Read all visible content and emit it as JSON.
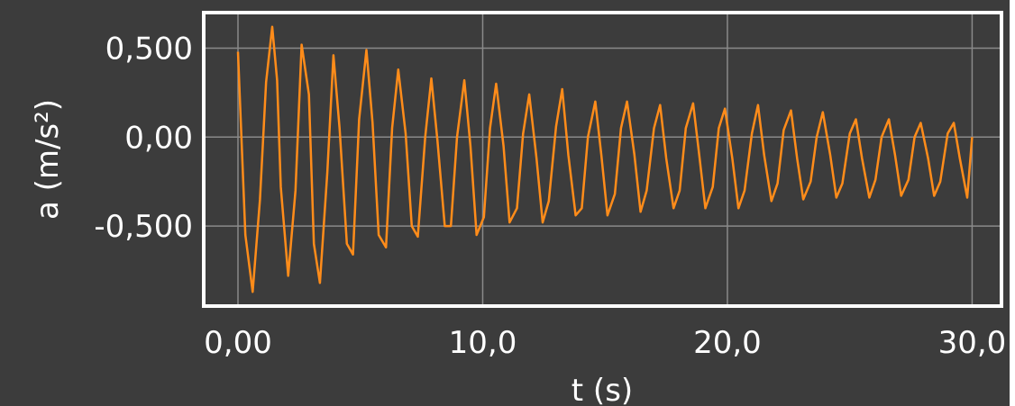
{
  "chart_data": {
    "type": "line",
    "title": "",
    "xlabel": "t (s)",
    "ylabel": "a (m/s²)",
    "xlim": [
      -1.4,
      31.2
    ],
    "ylim": [
      -0.95,
      0.7
    ],
    "x_ticks": [
      0,
      10,
      20,
      30
    ],
    "x_tick_labels": [
      "0,00",
      "10,0",
      "20,0",
      "30,0"
    ],
    "y_ticks": [
      0.5,
      0,
      -0.5
    ],
    "y_tick_labels": [
      "0,500",
      "0,00",
      "-0,500"
    ],
    "grid": true,
    "legend": "none",
    "series": [
      {
        "color": "#ff8c1a",
        "x": [
          0.0,
          0.3,
          0.6,
          0.9,
          1.15,
          1.4,
          1.6,
          1.75,
          2.05,
          2.35,
          2.6,
          2.9,
          3.1,
          3.35,
          3.65,
          3.9,
          4.15,
          4.45,
          4.7,
          4.95,
          5.25,
          5.5,
          5.75,
          6.05,
          6.3,
          6.55,
          6.85,
          7.1,
          7.35,
          7.65,
          7.9,
          8.15,
          8.45,
          8.7,
          8.95,
          9.25,
          9.5,
          9.75,
          10.05,
          10.3,
          10.55,
          10.85,
          11.1,
          11.4,
          11.65,
          11.9,
          12.2,
          12.45,
          12.7,
          13.0,
          13.25,
          13.5,
          13.8,
          14.05,
          14.3,
          14.6,
          14.85,
          15.1,
          15.4,
          15.65,
          15.9,
          16.2,
          16.45,
          16.7,
          17.0,
          17.25,
          17.5,
          17.8,
          18.05,
          18.3,
          18.6,
          18.85,
          19.1,
          19.4,
          19.65,
          19.9,
          20.2,
          20.45,
          20.7,
          21.0,
          21.25,
          21.5,
          21.8,
          22.05,
          22.3,
          22.6,
          22.85,
          23.1,
          23.4,
          23.65,
          23.9,
          24.2,
          24.45,
          24.7,
          25.0,
          25.25,
          25.5,
          25.8,
          26.05,
          26.3,
          26.6,
          26.85,
          27.1,
          27.4,
          27.65,
          27.9,
          28.2,
          28.45,
          28.7,
          29.0,
          29.25,
          29.5,
          29.8,
          30.0
        ],
        "y": [
          0.48,
          -0.55,
          -0.87,
          -0.35,
          0.31,
          0.62,
          0.32,
          -0.28,
          -0.78,
          -0.3,
          0.52,
          0.24,
          -0.6,
          -0.82,
          -0.2,
          0.46,
          0.05,
          -0.6,
          -0.66,
          0.1,
          0.49,
          0.08,
          -0.55,
          -0.62,
          0.05,
          0.38,
          0.02,
          -0.5,
          -0.56,
          0.0,
          0.33,
          -0.02,
          -0.5,
          -0.5,
          0.0,
          0.32,
          -0.05,
          -0.55,
          -0.45,
          0.05,
          0.3,
          -0.05,
          -0.48,
          -0.4,
          0.02,
          0.24,
          -0.12,
          -0.48,
          -0.36,
          0.06,
          0.27,
          -0.1,
          -0.44,
          -0.4,
          0.0,
          0.2,
          -0.1,
          -0.44,
          -0.32,
          0.05,
          0.2,
          -0.1,
          -0.42,
          -0.3,
          0.05,
          0.18,
          -0.12,
          -0.4,
          -0.3,
          0.05,
          0.19,
          -0.1,
          -0.4,
          -0.28,
          0.05,
          0.16,
          -0.12,
          -0.4,
          -0.3,
          0.02,
          0.18,
          -0.1,
          -0.36,
          -0.26,
          0.04,
          0.15,
          -0.12,
          -0.35,
          -0.25,
          0.0,
          0.14,
          -0.1,
          -0.34,
          -0.26,
          0.02,
          0.1,
          -0.12,
          -0.34,
          -0.24,
          0.0,
          0.1,
          -0.1,
          -0.33,
          -0.24,
          0.0,
          0.08,
          -0.12,
          -0.33,
          -0.25,
          0.02,
          0.08,
          -0.12,
          -0.34,
          0.0
        ]
      }
    ]
  }
}
